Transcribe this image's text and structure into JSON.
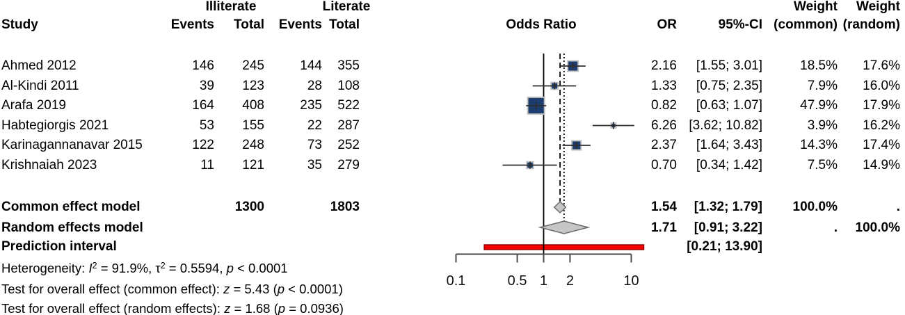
{
  "header": {
    "group_illiterate": "Illiterate",
    "group_literate": "Literate",
    "study": "Study",
    "events": "Events",
    "total": "Total",
    "or": "OR",
    "ci": "95%-CI",
    "weight": "Weight",
    "weight_common": "(common)",
    "weight_random": "(random)"
  },
  "chart_data": {
    "type": "scatter",
    "subtype": "forest-plot-meta-analysis",
    "title": "Odds Ratio",
    "x_scale": "log10",
    "x_ticks": [
      "0.1",
      "0.5",
      "1",
      "2",
      "10"
    ],
    "x_tick_values": [
      0.1,
      0.5,
      1,
      2,
      10
    ],
    "reference_or": 1.0,
    "colors": {
      "square": "#1c3d6e",
      "square_border": "#c3c3c3",
      "ci_line": "#2e2e2e",
      "diamond_fill": "#c6c6c6",
      "diamond_border": "#6b6b6b",
      "prediction_fill": "#f20000",
      "prediction_border": "#8c0000",
      "axis": "#4a4a4a",
      "reference_line": "#000000"
    },
    "studies": [
      {
        "study": "Ahmed 2012",
        "events_illiterate": "146",
        "total_illiterate": "245",
        "events_literate": "144",
        "total_literate": "355",
        "or": 2.16,
        "ci_low": 1.55,
        "ci_high": 3.01,
        "or_text": "2.16",
        "ci_text": "[1.55; 3.01]",
        "weight_common": 18.5,
        "weight_common_text": "18.5%",
        "weight_random": 17.6,
        "weight_random_text": "17.6%"
      },
      {
        "study": "Al-Kindi 2011",
        "events_illiterate": "39",
        "total_illiterate": "123",
        "events_literate": "28",
        "total_literate": "108",
        "or": 1.33,
        "ci_low": 0.75,
        "ci_high": 2.35,
        "or_text": "1.33",
        "ci_text": "[0.75; 2.35]",
        "weight_common": 7.9,
        "weight_common_text": "7.9%",
        "weight_random": 16.0,
        "weight_random_text": "16.0%"
      },
      {
        "study": "Arafa 2019",
        "events_illiterate": "164",
        "total_illiterate": "408",
        "events_literate": "235",
        "total_literate": "522",
        "or": 0.82,
        "ci_low": 0.63,
        "ci_high": 1.07,
        "or_text": "0.82",
        "ci_text": "[0.63; 1.07]",
        "weight_common": 47.9,
        "weight_common_text": "47.9%",
        "weight_random": 17.9,
        "weight_random_text": "17.9%"
      },
      {
        "study": "Habtegiorgis 2021",
        "events_illiterate": "53",
        "total_illiterate": "155",
        "events_literate": "22",
        "total_literate": "287",
        "or": 6.26,
        "ci_low": 3.62,
        "ci_high": 10.82,
        "or_text": "6.26",
        "ci_text": "[3.62; 10.82]",
        "weight_common": 3.9,
        "weight_common_text": "3.9%",
        "weight_random": 16.2,
        "weight_random_text": "16.2%"
      },
      {
        "study": "Karinagannanavar 2015",
        "events_illiterate": "122",
        "total_illiterate": "248",
        "events_literate": "73",
        "total_literate": "252",
        "or": 2.37,
        "ci_low": 1.64,
        "ci_high": 3.43,
        "or_text": "2.37",
        "ci_text": "[1.64; 3.43]",
        "weight_common": 14.3,
        "weight_common_text": "14.3%",
        "weight_random": 17.4,
        "weight_random_text": "17.4%"
      },
      {
        "study": "Krishnaiah 2023",
        "events_illiterate": "11",
        "total_illiterate": "121",
        "events_literate": "35",
        "total_literate": "279",
        "or": 0.7,
        "ci_low": 0.34,
        "ci_high": 1.42,
        "or_text": "0.70",
        "ci_text": "[0.34; 1.42]",
        "weight_common": 7.5,
        "weight_common_text": "7.5%",
        "weight_random": 14.9,
        "weight_random_text": "14.9%"
      }
    ],
    "common_effect": {
      "label": "Common effect model",
      "total_illiterate": "1300",
      "total_literate": "1803",
      "or": 1.54,
      "ci_low": 1.32,
      "ci_high": 1.79,
      "or_text": "1.54",
      "ci_text": "[1.32; 1.79]",
      "weight_common_text": "100.0%",
      "weight_random_text": "."
    },
    "random_effects": {
      "label": "Random effects model",
      "or": 1.71,
      "ci_low": 0.91,
      "ci_high": 3.22,
      "or_text": "1.71",
      "ci_text": "[0.91; 3.22]",
      "weight_common_text": ".",
      "weight_random_text": "100.0%"
    },
    "prediction_interval": {
      "label": "Prediction interval",
      "ci_low": 0.21,
      "ci_high": 13.9,
      "ci_text": "[0.21; 13.90]"
    }
  },
  "footnotes": {
    "heterogeneity": {
      "pre": "Heterogeneity: ",
      "i_sym": "I",
      "i_sup": "2",
      "seg1": " = 91.9%, ",
      "tau_sym": "τ",
      "tau_sup": "2",
      "seg2": " = 0.5594, ",
      "p_sym": "p",
      "seg3": " < 0.0001"
    },
    "test_common": {
      "pre": "Test for overall effect (common effect): ",
      "z_sym": "z",
      "seg1": " = 5.43 (",
      "p_sym": "p",
      "seg2": " < 0.0001)"
    },
    "test_random": {
      "pre": "Test for overall effect (random effects): ",
      "z_sym": "z",
      "seg1": " = 1.68 (",
      "p_sym": "p",
      "seg2": " = 0.0936)"
    }
  }
}
